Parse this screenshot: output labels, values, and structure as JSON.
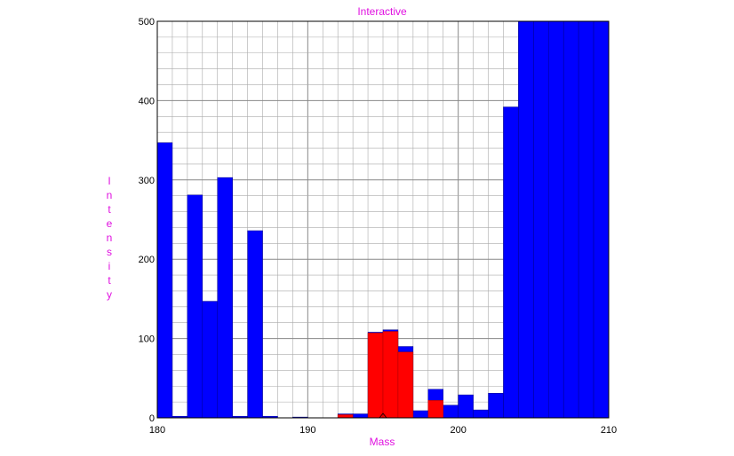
{
  "chart_data": {
    "type": "bar",
    "title": "Interactive",
    "xlabel": "Mass",
    "ylabel": "Intensity",
    "xlim": [
      180,
      210
    ],
    "ylim": [
      0,
      500
    ],
    "x_ticks": [
      180,
      190,
      200,
      210
    ],
    "y_ticks": [
      0,
      100,
      200,
      300,
      400,
      500
    ],
    "grid": true,
    "bin_width": 1,
    "series": [
      {
        "color": "#0000ff",
        "bins": [
          {
            "x": 180,
            "y": 347
          },
          {
            "x": 181,
            "y": 2
          },
          {
            "x": 182,
            "y": 281
          },
          {
            "x": 183,
            "y": 147
          },
          {
            "x": 184,
            "y": 303
          },
          {
            "x": 185,
            "y": 2
          },
          {
            "x": 186,
            "y": 236
          },
          {
            "x": 187,
            "y": 2
          },
          {
            "x": 188,
            "y": 0
          },
          {
            "x": 189,
            "y": 1
          },
          {
            "x": 190,
            "y": 0
          },
          {
            "x": 191,
            "y": 0
          },
          {
            "x": 192,
            "y": 5
          },
          {
            "x": 193,
            "y": 5
          },
          {
            "x": 194,
            "y": 108
          },
          {
            "x": 195,
            "y": 111
          },
          {
            "x": 196,
            "y": 90
          },
          {
            "x": 197,
            "y": 9
          },
          {
            "x": 198,
            "y": 36
          },
          {
            "x": 199,
            "y": 16
          },
          {
            "x": 200,
            "y": 29
          },
          {
            "x": 201,
            "y": 10
          },
          {
            "x": 202,
            "y": 31
          },
          {
            "x": 203,
            "y": 392
          },
          {
            "x": 204,
            "y": 500
          },
          {
            "x": 205,
            "y": 500
          },
          {
            "x": 206,
            "y": 500
          },
          {
            "x": 207,
            "y": 500
          },
          {
            "x": 208,
            "y": 500
          },
          {
            "x": 209,
            "y": 500
          }
        ]
      },
      {
        "color": "#ff0000",
        "bins": [
          {
            "x": 192,
            "y": 4
          },
          {
            "x": 194,
            "y": 107
          },
          {
            "x": 195,
            "y": 109
          },
          {
            "x": 196,
            "y": 83
          },
          {
            "x": 198,
            "y": 22
          }
        ]
      }
    ],
    "marker": {
      "x": 195.0,
      "y": 0,
      "shape": "triangle"
    },
    "colors": {
      "text": "#e010e0",
      "grid": "#aaaaaa",
      "grid_major": "#888888"
    }
  }
}
